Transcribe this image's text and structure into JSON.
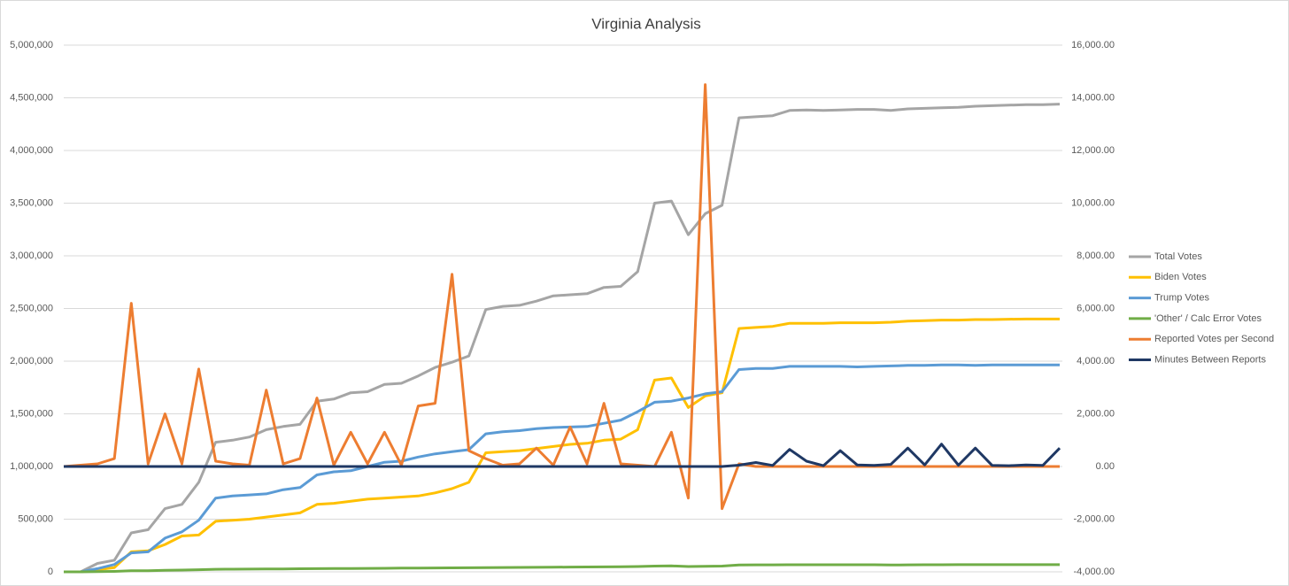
{
  "chart_data": {
    "type": "line",
    "title": "Virginia Analysis",
    "grid": true,
    "legend": "right",
    "ylim": [
      0,
      5000000
    ],
    "yticks": [
      0,
      {
        "value": 500000,
        "label": "500,000"
      },
      {
        "value": 1000000,
        "label": "1,000,000"
      },
      {
        "value": 1500000,
        "label": "1,500,000"
      },
      {
        "value": 2000000,
        "label": "2,000,000"
      },
      {
        "value": 2500000,
        "label": "2,500,000"
      },
      {
        "value": 3000000,
        "label": "3,000,000"
      },
      {
        "value": 3500000,
        "label": "3,500,000"
      },
      {
        "value": 4000000,
        "label": "4,000,000"
      },
      {
        "value": 4500000,
        "label": "4,500,000"
      },
      {
        "value": 5000000,
        "label": "5,000,000"
      }
    ],
    "y2lim": [
      -4000,
      16000
    ],
    "y2ticks": [
      {
        "value": -4000,
        "label": "-4,000.00"
      },
      {
        "value": -2000,
        "label": "-2,000.00"
      },
      {
        "value": 0,
        "label": "0.00"
      },
      {
        "value": 2000,
        "label": "2,000.00"
      },
      {
        "value": 4000,
        "label": "4,000.00"
      },
      {
        "value": 6000,
        "label": "6,000.00"
      },
      {
        "value": 8000,
        "label": "8,000.00"
      },
      {
        "value": 10000,
        "label": "10,000.00"
      },
      {
        "value": 12000,
        "label": "12,000.00"
      },
      {
        "value": 14000,
        "label": "14,000.00"
      },
      {
        "value": 16000,
        "label": "16,000.00"
      }
    ],
    "series": [
      {
        "name": "Total Votes",
        "color": "#a5a5a5",
        "values": [
          0,
          0,
          80000,
          110000,
          370000,
          400000,
          600000,
          640000,
          850000,
          1230000,
          1250000,
          1280000,
          1350000,
          1380000,
          1400000,
          1620000,
          1640000,
          1700000,
          1710000,
          1780000,
          1790000,
          1860000,
          1940000,
          1990000,
          2050000,
          2490000,
          2520000,
          2530000,
          2570000,
          2620000,
          2630000,
          2640000,
          2700000,
          2710000,
          2850000,
          3500000,
          3520000,
          3200000,
          3400000,
          3480000,
          4310000,
          4320000,
          4330000,
          4380000,
          4385000,
          4380000,
          4385000,
          4390000,
          4390000,
          4380000,
          4395000,
          4400000,
          4405000,
          4410000,
          4420000,
          4425000,
          4430000,
          4435000,
          4435000,
          4440000
        ]
      },
      {
        "name": "Biden Votes",
        "color": "#ffc000",
        "values": [
          0,
          0,
          20000,
          40000,
          190000,
          200000,
          260000,
          340000,
          350000,
          480000,
          490000,
          500000,
          520000,
          540000,
          560000,
          640000,
          650000,
          670000,
          690000,
          700000,
          710000,
          720000,
          750000,
          790000,
          850000,
          1130000,
          1140000,
          1150000,
          1170000,
          1190000,
          1210000,
          1220000,
          1250000,
          1260000,
          1350000,
          1820000,
          1840000,
          1560000,
          1670000,
          1700000,
          2310000,
          2320000,
          2330000,
          2360000,
          2360000,
          2360000,
          2365000,
          2365000,
          2365000,
          2370000,
          2380000,
          2385000,
          2390000,
          2390000,
          2395000,
          2395000,
          2398000,
          2400000,
          2400000,
          2400000
        ]
      },
      {
        "name": "Trump Votes",
        "color": "#5b9bd5",
        "values": [
          0,
          0,
          30000,
          70000,
          180000,
          190000,
          320000,
          380000,
          490000,
          700000,
          720000,
          730000,
          740000,
          780000,
          800000,
          920000,
          950000,
          960000,
          1000000,
          1040000,
          1050000,
          1090000,
          1120000,
          1140000,
          1160000,
          1310000,
          1330000,
          1340000,
          1360000,
          1370000,
          1375000,
          1380000,
          1410000,
          1440000,
          1520000,
          1610000,
          1620000,
          1650000,
          1690000,
          1710000,
          1920000,
          1930000,
          1930000,
          1950000,
          1950000,
          1950000,
          1950000,
          1945000,
          1950000,
          1955000,
          1960000,
          1960000,
          1965000,
          1965000,
          1960000,
          1965000,
          1965000,
          1965000,
          1965000,
          1965000
        ]
      },
      {
        "name": "'Other' / Calc Error Votes",
        "color": "#70ad47",
        "values": [
          0,
          0,
          2000,
          4000,
          10000,
          11000,
          14000,
          17000,
          20000,
          24000,
          25000,
          26000,
          27000,
          28000,
          29000,
          30000,
          31000,
          32000,
          33000,
          34000,
          35000,
          36000,
          37000,
          38000,
          39000,
          40000,
          41000,
          42000,
          43000,
          44000,
          45000,
          46000,
          47000,
          48000,
          50000,
          55000,
          56000,
          50000,
          53000,
          55000,
          65000,
          66000,
          66000,
          67000,
          67000,
          67000,
          67000,
          67000,
          67000,
          65000,
          66000,
          67000,
          67000,
          68000,
          68000,
          68000,
          68000,
          68000,
          68000,
          68000
        ]
      },
      {
        "name": "Reported Votes per Second",
        "color": "#ed7d31",
        "axis": "y2",
        "values": [
          0,
          50,
          100,
          300,
          6200,
          100,
          2000,
          100,
          3700,
          200,
          100,
          50,
          2900,
          100,
          300,
          2600,
          50,
          1300,
          100,
          1300,
          50,
          2300,
          2400,
          7300,
          600,
          300,
          50,
          100,
          700,
          50,
          1500,
          100,
          2400,
          100,
          50,
          0,
          1300,
          -1200,
          14500,
          -1600,
          100,
          0,
          0,
          0,
          0,
          0,
          0,
          0,
          0,
          0,
          0,
          0,
          0,
          0,
          0,
          0,
          0,
          0,
          0,
          0
        ]
      },
      {
        "name": "Minutes Between Reports",
        "color": "#1f3864",
        "axis": "y2",
        "values": [
          0,
          0,
          0,
          0,
          0,
          0,
          0,
          0,
          0,
          0,
          0,
          0,
          0,
          0,
          0,
          0,
          0,
          0,
          0,
          0,
          0,
          0,
          0,
          0,
          0,
          0,
          0,
          0,
          0,
          0,
          0,
          0,
          0,
          0,
          0,
          0,
          0,
          0,
          0,
          0,
          50,
          150,
          40,
          650,
          200,
          30,
          600,
          60,
          40,
          80,
          700,
          60,
          850,
          50,
          700,
          40,
          30,
          60,
          40,
          700
        ]
      }
    ]
  }
}
